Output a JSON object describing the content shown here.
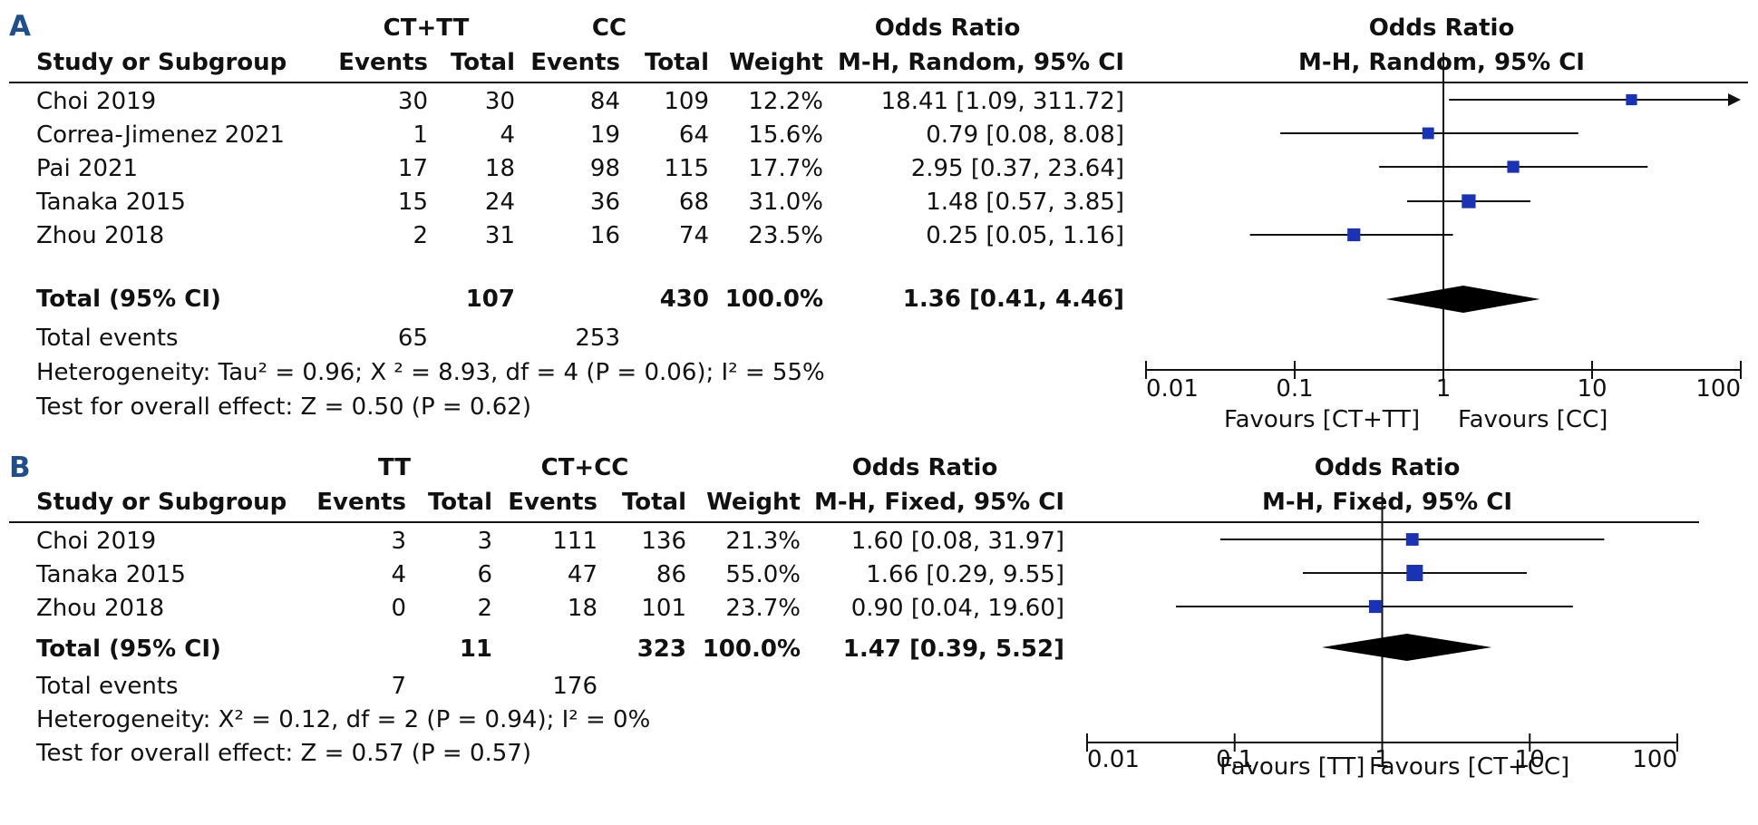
{
  "chart_data": [
    {
      "type": "forest",
      "panel_label": "A",
      "headers": {
        "study": "Study or Subgroup",
        "group1": "CT+TT",
        "group2": "CC",
        "events": "Events",
        "total": "Total",
        "weight": "Weight",
        "or_title": "Odds Ratio",
        "or_method": "M-H, Random, 95% CI",
        "plot_title": "Odds Ratio",
        "plot_method": "M-H, Random, 95% CI"
      },
      "studies": [
        {
          "name": "Choi 2019",
          "e1": "30",
          "t1": "30",
          "e2": "84",
          "t2": "109",
          "weight": "12.2%",
          "ci_text": "18.41 [1.09, 311.72]",
          "or": 18.41,
          "lo": 1.09,
          "hi": 311.72
        },
        {
          "name": "Correa-Jimenez 2021",
          "e1": "1",
          "t1": "4",
          "e2": "19",
          "t2": "64",
          "weight": "15.6%",
          "ci_text": "0.79 [0.08, 8.08]",
          "or": 0.79,
          "lo": 0.08,
          "hi": 8.08
        },
        {
          "name": "Pai 2021",
          "e1": "17",
          "t1": "18",
          "e2": "98",
          "t2": "115",
          "weight": "17.7%",
          "ci_text": "2.95 [0.37, 23.64]",
          "or": 2.95,
          "lo": 0.37,
          "hi": 23.64
        },
        {
          "name": "Tanaka 2015",
          "e1": "15",
          "t1": "24",
          "e2": "36",
          "t2": "68",
          "weight": "31.0%",
          "ci_text": "1.48 [0.57, 3.85]",
          "or": 1.48,
          "lo": 0.57,
          "hi": 3.85
        },
        {
          "name": "Zhou 2018",
          "e1": "2",
          "t1": "31",
          "e2": "16",
          "t2": "74",
          "weight": "23.5%",
          "ci_text": "0.25 [0.05, 1.16]",
          "or": 0.25,
          "lo": 0.05,
          "hi": 1.16
        }
      ],
      "total": {
        "label": "Total (95% CI)",
        "t1": "107",
        "t2": "430",
        "weight": "100.0%",
        "ci_text": "1.36 [0.41, 4.46]",
        "or": 1.36,
        "lo": 0.41,
        "hi": 4.46
      },
      "events": {
        "label": "Total events",
        "e1": "65",
        "e2": "253"
      },
      "heterogeneity": "Heterogeneity: Tau² = 0.96;   Χ ² = 8.93, df = 4 (P = 0.06); I² = 55%",
      "overall": "Test for overall effect: Z = 0.50 (P = 0.62)",
      "axis": {
        "ticks": [
          "0.01",
          "0.1",
          "1",
          "10",
          "100"
        ],
        "tick_values": [
          0.01,
          0.1,
          1,
          10,
          100
        ],
        "xlim": [
          0.01,
          100
        ],
        "scale": "log"
      },
      "favours_left": "Favours [CT+TT]",
      "favours_right": "Favours [CC]"
    },
    {
      "type": "forest",
      "panel_label": "B",
      "headers": {
        "study": "Study or Subgroup",
        "group1": "TT",
        "group2": "CT+CC",
        "events": "Events",
        "total": "Total",
        "weight": "Weight",
        "or_title": "Odds Ratio",
        "or_method": "M-H, Fixed, 95% CI",
        "plot_title": "Odds Ratio",
        "plot_method": "M-H, Fixed, 95% CI"
      },
      "studies": [
        {
          "name": "Choi 2019",
          "e1": "3",
          "t1": "3",
          "e2": "111",
          "t2": "136",
          "weight": "21.3%",
          "ci_text": "1.60 [0.08, 31.97]",
          "or": 1.6,
          "lo": 0.08,
          "hi": 31.97
        },
        {
          "name": "Tanaka 2015",
          "e1": "4",
          "t1": "6",
          "e2": "47",
          "t2": "86",
          "weight": "55.0%",
          "ci_text": "1.66 [0.29, 9.55]",
          "or": 1.66,
          "lo": 0.29,
          "hi": 9.55
        },
        {
          "name": "Zhou 2018",
          "e1": "0",
          "t1": "2",
          "e2": "18",
          "t2": "101",
          "weight": "23.7%",
          "ci_text": "0.90 [0.04, 19.60]",
          "or": 0.9,
          "lo": 0.04,
          "hi": 19.6
        }
      ],
      "total": {
        "label": "Total (95% CI)",
        "t1": "11",
        "t2": "323",
        "weight": "100.0%",
        "ci_text": "1.47 [0.39, 5.52]",
        "or": 1.47,
        "lo": 0.39,
        "hi": 5.52
      },
      "events": {
        "label": "Total events",
        "e1": "7",
        "e2": "176"
      },
      "heterogeneity": "Heterogeneity:   Χ² = 0.12, df = 2 (P = 0.94); I² = 0%",
      "overall": "Test for overall effect: Z = 0.57 (P = 0.57)",
      "axis": {
        "ticks": [
          "0.01",
          "0.1",
          "1",
          "10",
          "100"
        ],
        "tick_values": [
          0.01,
          0.1,
          1,
          10,
          100
        ],
        "xlim": [
          0.01,
          100
        ],
        "scale": "log"
      },
      "favours_left": "Favours [TT]",
      "favours_right": "Favours [CT+CC]"
    }
  ],
  "colors": {
    "marker": "#1a33b5",
    "diamond": "#000000",
    "line": "#111111",
    "panel_label": "#1f4e8c"
  }
}
